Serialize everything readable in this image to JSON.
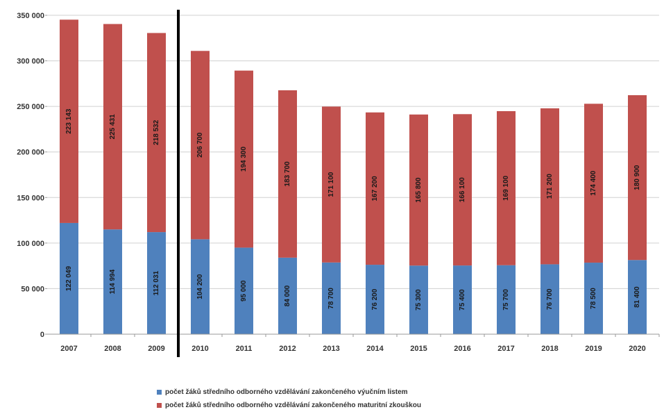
{
  "chart_data": {
    "type": "bar",
    "stacked": true,
    "categories": [
      "2007",
      "2008",
      "2009",
      "2010",
      "2011",
      "2012",
      "2013",
      "2014",
      "2015",
      "2016",
      "2017",
      "2018",
      "2019",
      "2020"
    ],
    "series": [
      {
        "name": "počet žáků středního odborného vzdělávání zakončeného výučním listem",
        "color": "#4f81bd",
        "values": [
          122049,
          114994,
          112031,
          104200,
          95000,
          84000,
          78700,
          76200,
          75300,
          75400,
          75700,
          76700,
          78500,
          81400
        ],
        "labels": [
          "122 049",
          "114 994",
          "112 031",
          "104 200",
          "95 000",
          "84 000",
          "78 700",
          "76 200",
          "75 300",
          "75 400",
          "75 700",
          "76 700",
          "78 500",
          "81 400"
        ]
      },
      {
        "name": "počet žáků středního odborného vzdělávání zakončeného maturitní zkouškou",
        "color": "#c0504d",
        "values": [
          223143,
          225431,
          218532,
          206700,
          194300,
          183700,
          171100,
          167200,
          165800,
          166100,
          169100,
          171200,
          174400,
          180900
        ],
        "labels": [
          "223 143",
          "225 431",
          "218 532",
          "206 700",
          "194 300",
          "183 700",
          "171 100",
          "167 200",
          "165 800",
          "166 100",
          "169 100",
          "171 200",
          "174 400",
          "180 900"
        ]
      }
    ],
    "yticks": [
      "0",
      "50 000",
      "100 000",
      "150 000",
      "200 000",
      "250 000",
      "300 000",
      "350 000"
    ],
    "ylim": [
      0,
      350000
    ],
    "grid": true,
    "legend_position": "bottom",
    "divider_after_category": "2009",
    "gridline_color": "#d0d0d0",
    "axis_color": "#999999",
    "divider_color": "#000000"
  }
}
